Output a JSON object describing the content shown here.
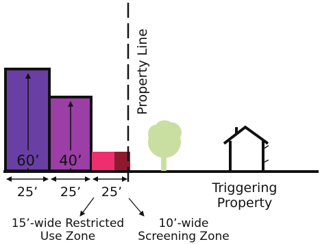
{
  "labels": {
    "property_line": "Property Line",
    "height_tall": "60’",
    "height_mid": "40’",
    "width_1": "25’",
    "width_2": "25’",
    "width_3": "25’",
    "triggering_line1": "Triggering",
    "triggering_line2": "Property",
    "restricted_line1": "15’-wide Restricted",
    "restricted_line2": "Use Zone",
    "screening_line1": "10’-wide",
    "screening_line2": "Screening Zone"
  },
  "colors": {
    "tall_block": "#6a3fa3",
    "mid_block": "#9b3ea6",
    "restricted_zone": "#ee2f6f",
    "screening_zone": "#8e1b2d",
    "tree": "#c9dfa2",
    "outline": "#111111"
  },
  "icons": {
    "tree": "tree-icon",
    "house": "house-icon"
  }
}
